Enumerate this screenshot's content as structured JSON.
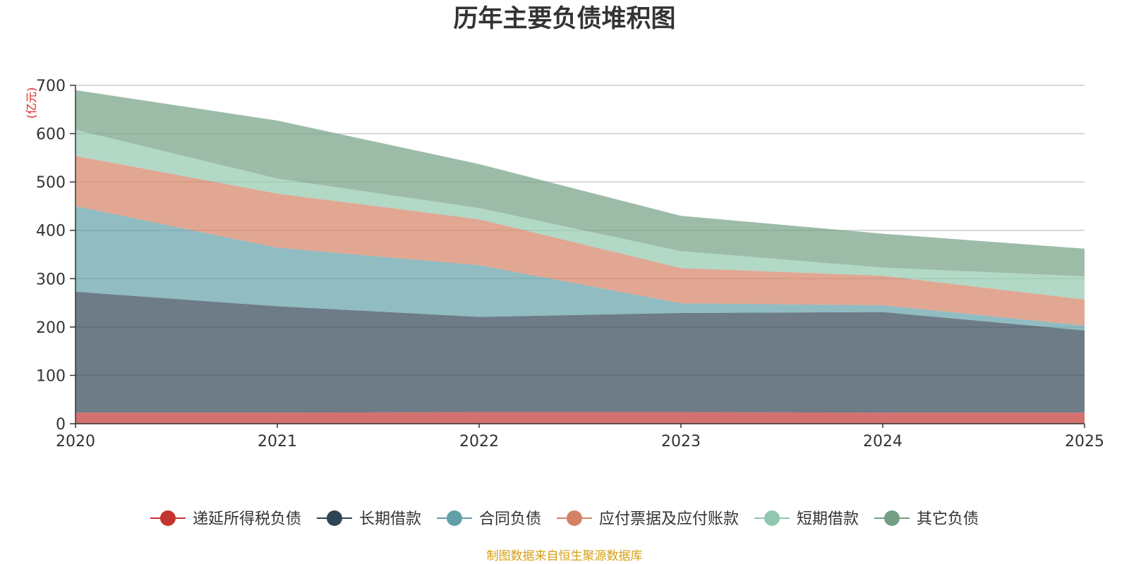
{
  "chart_data": {
    "type": "area",
    "stacked": true,
    "title": "历年主要负债堆积图",
    "unit_label": "(亿元)",
    "unit_color": "#e02020",
    "source_text": "制图数据来自恒生聚源数据库",
    "source_color": "#d4a017",
    "x": [
      "2020",
      "2021",
      "2022",
      "2023",
      "2024",
      "2025"
    ],
    "ylim": [
      0,
      700
    ],
    "yticks": [
      0,
      100,
      200,
      300,
      400,
      500,
      600,
      700
    ],
    "grid": true,
    "legend_position": "bottom",
    "series": [
      {
        "name": "递延所得税负债",
        "color": "#c23531",
        "values": [
          23,
          23,
          24,
          24,
          23,
          23
        ]
      },
      {
        "name": "长期借款",
        "color": "#2f4554",
        "values": [
          250,
          220,
          197,
          205,
          208,
          170
        ]
      },
      {
        "name": "合同负债",
        "color": "#61a0a8",
        "values": [
          177,
          121,
          107,
          20,
          14,
          10
        ]
      },
      {
        "name": "应付票据及应付账款",
        "color": "#d48265",
        "values": [
          104,
          112,
          95,
          73,
          61,
          54
        ]
      },
      {
        "name": "短期借款",
        "color": "#91c7ae",
        "values": [
          54,
          31,
          23,
          35,
          17,
          48
        ]
      },
      {
        "name": "其它负债",
        "color": "#749f83",
        "values": [
          82,
          120,
          91,
          73,
          70,
          57
        ]
      }
    ]
  }
}
